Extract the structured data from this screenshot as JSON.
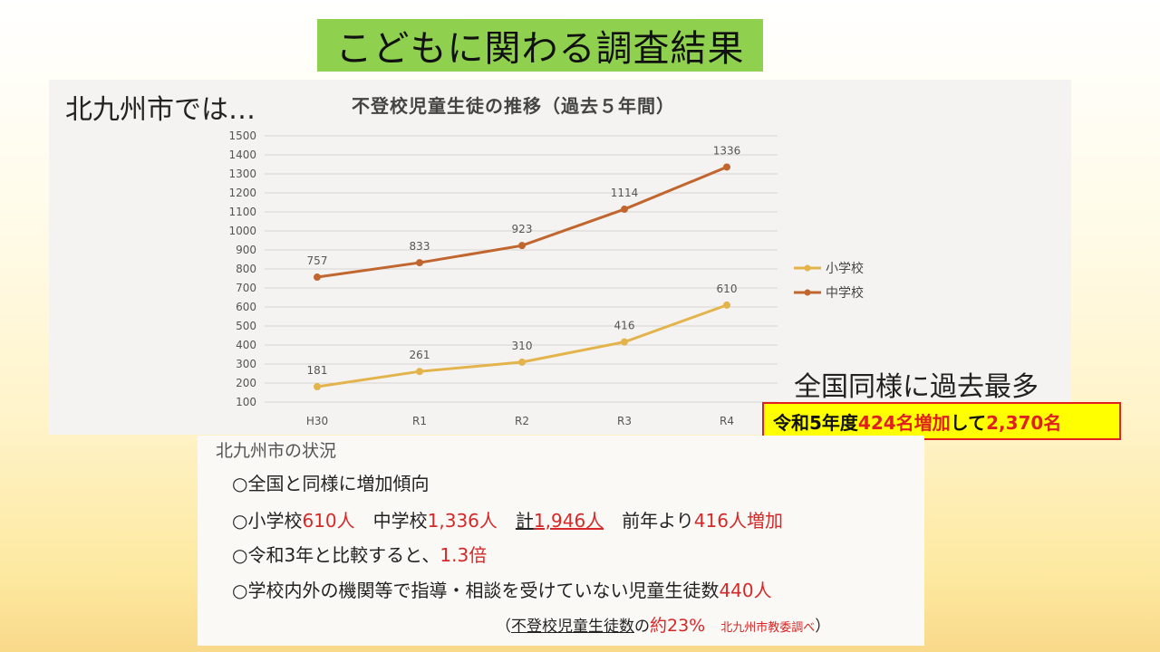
{
  "slide": {
    "title": "こどもに関わる調査結果",
    "intro": "北九州市では…",
    "nation_text": "全国同様に過去最多",
    "highlight": {
      "part1": "令和5年度",
      "part2": "424名増加",
      "part3": "して",
      "part4": "2,370名"
    }
  },
  "chart_data": {
    "type": "line",
    "title": "不登校児童生徒の推移（過去５年間）",
    "categories": [
      "H30",
      "R1",
      "R2",
      "R3",
      "R4"
    ],
    "y_ticks": [
      "100",
      "200",
      "300",
      "400",
      "500",
      "600",
      "700",
      "800",
      "900",
      "1000",
      "1100",
      "1200",
      "1300",
      "1400",
      "1500"
    ],
    "ylim": [
      100,
      1500
    ],
    "grid": true,
    "legend_position": "right",
    "series": [
      {
        "name": "小学校",
        "color": "#e3b34c",
        "values": [
          181,
          261,
          310,
          416,
          610
        ]
      },
      {
        "name": "中学校",
        "color": "#c0662e",
        "values": [
          757,
          833,
          923,
          1114,
          1336
        ]
      }
    ]
  },
  "status": {
    "title": "北九州市の状況",
    "line1": "○全国と同様に増加傾向",
    "line2": {
      "a": "○小学校",
      "b": "610人",
      "c": "　中学校",
      "d": "1,336人",
      "e": "　",
      "f": "計",
      "g": "1,946人",
      "h": "　前年より",
      "i": "416人増加"
    },
    "line3": {
      "a": "○令和3年と比較すると、",
      "b": "1.3倍"
    },
    "line4": {
      "a": "○学校内外の機関等で指導・相談を受けていない児童生徒数",
      "b": "440人"
    },
    "note": {
      "open": "（",
      "a": "不登校児童生徒数",
      "b": "の",
      "c": "約23%",
      "d": "北九州市教委調べ",
      "close": "）"
    }
  }
}
